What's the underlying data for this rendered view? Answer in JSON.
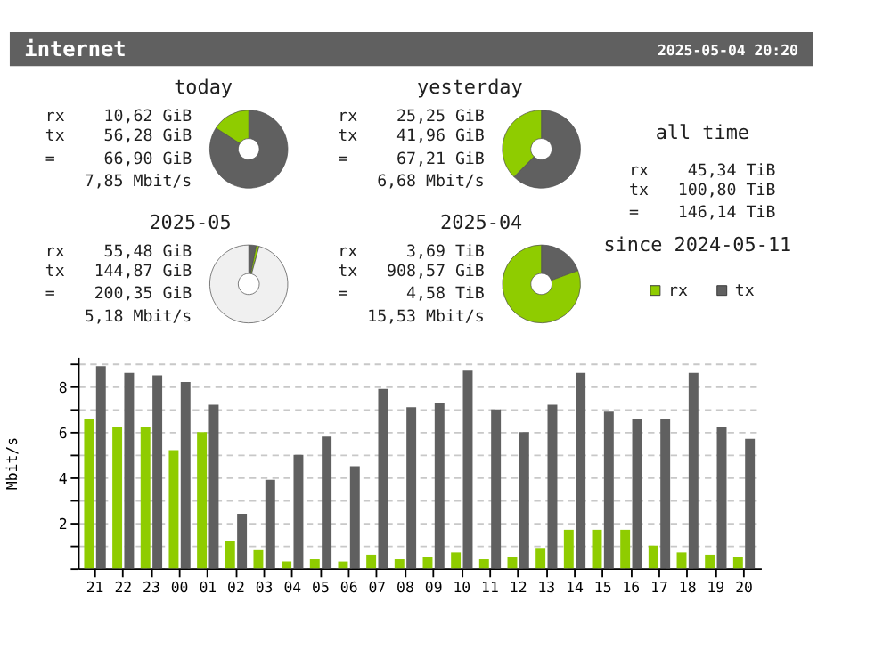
{
  "chart_data": [
    {
      "type": "other",
      "title": "internet",
      "subtitle": "2025-05-04 20:20"
    },
    {
      "type": "donut",
      "title": "today",
      "categories": [
        "tx",
        "rx"
      ],
      "values": [
        84.1,
        15.9
      ],
      "colors": [
        "#606060",
        "#8fcc00"
      ],
      "legend": "right",
      "annotations": [
        "rx 10,62 GiB",
        "tx 56,28 GiB",
        "= 66,90 GiB",
        "7,85 Mbit/s"
      ]
    },
    {
      "type": "donut",
      "title": "yesterday",
      "categories": [
        null,
        null
      ],
      "values": [
        62.4,
        37.6
      ],
      "colors": [
        "#606060",
        "#8fcc00"
      ],
      "annotations": [
        "rx 25,25 GiB",
        "tx 41,96 GiB",
        "= 67,21 GiB",
        "6,68 Mbit/s"
      ]
    },
    {
      "type": "donut",
      "title": "2025-05",
      "categories": [
        null,
        null,
        null
      ],
      "values": [
        3.1,
        1.2,
        95.7
      ],
      "colors": [
        "#606060",
        "#8fcc00",
        "#f0f0f0"
      ],
      "annotations": [
        "rx 55,48 GiB",
        "tx 144,87 GiB",
        "= 200,35 GiB",
        "5,18 Mbit/s"
      ]
    },
    {
      "type": "donut",
      "title": "2025-04",
      "categories": [
        null,
        null
      ],
      "values": [
        19.4,
        80.6
      ],
      "colors": [
        "#606060",
        "#8fcc00"
      ],
      "annotations": [
        "rx 3,69 TiB",
        "tx 908,57 GiB",
        "= 4,58 TiB",
        "15,53 Mbit/s"
      ]
    },
    {
      "type": "other",
      "title": "all time",
      "annotations": [
        "rx 45,34 TiB",
        "tx 100,80 TiB",
        "= 146,14 TiB",
        "since 2024-05-11"
      ]
    },
    {
      "type": "bar",
      "ylabel": "Mbit/s",
      "categories": [
        "21",
        "22",
        "23",
        "00",
        "01",
        "02",
        "03",
        "04",
        "05",
        "06",
        "07",
        "08",
        "09",
        "10",
        "11",
        "12",
        "13",
        "14",
        "15",
        "16",
        "17",
        "18",
        "19",
        "20"
      ],
      "series": [
        {
          "name": "rx",
          "color": "#8fcc00",
          "values": [
            6.6,
            6.2,
            6.2,
            5.2,
            6.0,
            1.2,
            0.8,
            0.3,
            0.4,
            0.3,
            0.6,
            0.4,
            0.5,
            0.7,
            0.4,
            0.5,
            0.9,
            1.7,
            1.7,
            1.7,
            1.0,
            0.7,
            0.6,
            0.5
          ]
        },
        {
          "name": "tx",
          "color": "#606060",
          "values": [
            8.9,
            8.6,
            8.5,
            8.2,
            7.2,
            2.4,
            3.9,
            5.0,
            5.8,
            4.5,
            7.9,
            7.1,
            7.3,
            8.7,
            7.0,
            6.0,
            7.2,
            8.6,
            6.9,
            6.6,
            6.6,
            8.6,
            6.2,
            5.7
          ]
        }
      ],
      "ylim": [
        0,
        9.3
      ],
      "yticks": [
        {
          "value": 0,
          "label": null
        },
        {
          "value": 1,
          "label": null
        },
        2,
        {
          "value": 3,
          "label": null
        },
        4,
        {
          "value": 5,
          "label": null
        },
        6,
        {
          "value": 7,
          "label": null
        },
        8,
        {
          "value": 9,
          "label": null
        }
      ],
      "grid": "y",
      "legend": "top right"
    }
  ]
}
